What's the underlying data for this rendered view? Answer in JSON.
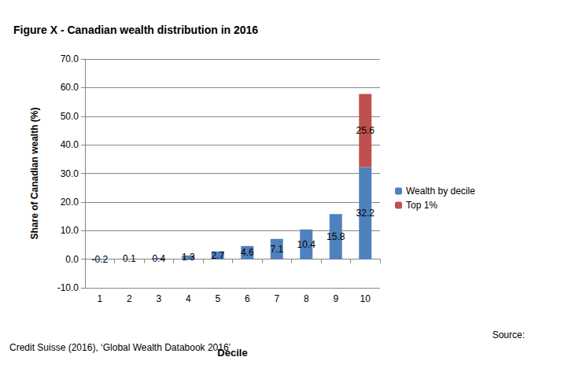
{
  "chart_data": {
    "type": "bar",
    "title": "Figure X - Canadian wealth distribution in 2016",
    "x_label": "Decile",
    "y_label": "Share of Canadian wealth (%)",
    "categories": [
      "1",
      "2",
      "3",
      "4",
      "5",
      "6",
      "7",
      "8",
      "9",
      "10"
    ],
    "series": [
      {
        "name": "Wealth by decile",
        "color": "#4f81bd",
        "values": [
          -0.2,
          0.1,
          0.4,
          1.3,
          2.7,
          4.6,
          7.1,
          10.4,
          15.8,
          32.2
        ]
      },
      {
        "name": "Top 1%",
        "color": "#c0504d",
        "values": [
          null,
          null,
          null,
          null,
          null,
          null,
          null,
          null,
          null,
          25.6
        ]
      }
    ],
    "stacked": true,
    "data_labels": true,
    "ylim": [
      -10,
      70
    ],
    "yticks": [
      {
        "value": -10,
        "label": "-10.0"
      },
      {
        "value": 0,
        "label": "0.0"
      },
      {
        "value": 10,
        "label": "10.0"
      },
      {
        "value": 20,
        "label": "20.0"
      },
      {
        "value": 30,
        "label": "30.0"
      },
      {
        "value": 40,
        "label": "40.0"
      },
      {
        "value": 50,
        "label": "50.0"
      },
      {
        "value": 60,
        "label": "60.0"
      },
      {
        "value": 70,
        "label": "70.0"
      }
    ],
    "grid": true,
    "legend": "right",
    "annotations": [
      "Source:",
      "Credit Suisse (2016), ‘Global Wealth Databook 2016’"
    ]
  }
}
